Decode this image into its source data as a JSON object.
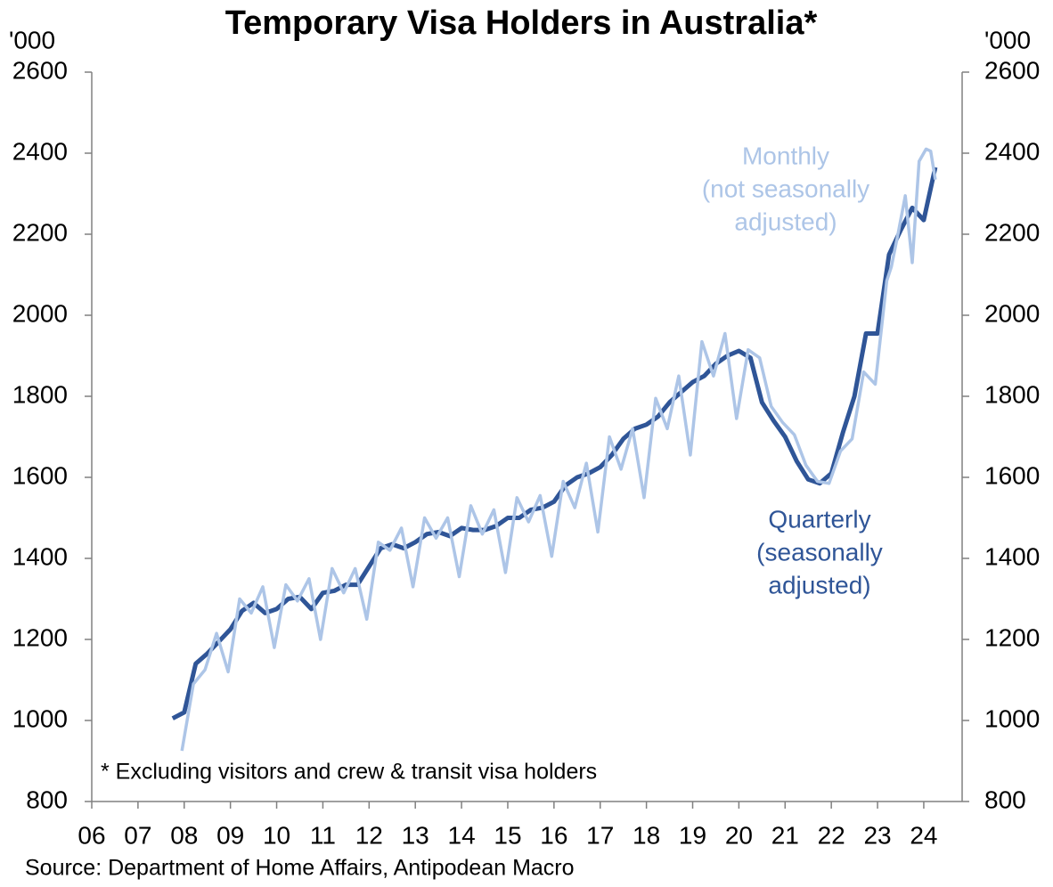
{
  "chart_data": {
    "type": "line",
    "title": "Temporary Visa Holders in Australia*",
    "y_unit": "'000",
    "y2_unit": "'000",
    "footnote": "* Excluding visitors and crew & transit visa holders",
    "source": "Source: Department of Home Affairs, Antipodean Macro",
    "xlim": [
      6,
      24.83
    ],
    "xticks": [
      {
        "value": 6,
        "label": "06"
      },
      {
        "value": 7,
        "label": "07"
      },
      {
        "value": 8,
        "label": "08"
      },
      {
        "value": 9,
        "label": "09"
      },
      10,
      11,
      12,
      13,
      14,
      15,
      16,
      17,
      18,
      19,
      20,
      21,
      22,
      23,
      24
    ],
    "ylim": [
      800,
      2600
    ],
    "yticks": [
      800,
      1000,
      1200,
      1400,
      1600,
      1800,
      2000,
      2200,
      2400,
      2600
    ],
    "y2lim": [
      800,
      2600
    ],
    "y2ticks": [
      800,
      1000,
      1200,
      1400,
      1600,
      1800,
      2000,
      2200,
      2400,
      2600
    ],
    "grid": false,
    "series": [
      {
        "label": [
          "Quarterly",
          "(seasonally",
          "adjusted)"
        ],
        "color": "#2f5597",
        "x": [
          7.75,
          8,
          8.25,
          8.5,
          8.75,
          9,
          9.25,
          9.5,
          9.75,
          10,
          10.25,
          10.5,
          10.75,
          11,
          11.25,
          11.5,
          11.75,
          12,
          12.25,
          12.5,
          12.75,
          13,
          13.25,
          13.5,
          13.75,
          14,
          14.25,
          14.5,
          14.75,
          15,
          15.25,
          15.5,
          15.75,
          16,
          16.25,
          16.5,
          16.75,
          17,
          17.25,
          17.5,
          17.75,
          18,
          18.25,
          18.5,
          18.75,
          19,
          19.25,
          19.5,
          19.75,
          20,
          20.25,
          20.5,
          20.75,
          21,
          21.25,
          21.5,
          21.75,
          22,
          22.25,
          22.5,
          22.75,
          23,
          23.25,
          23.5,
          23.75,
          24,
          24.25
        ],
        "values": [
          1005,
          1020,
          1140,
          1165,
          1195,
          1225,
          1270,
          1290,
          1265,
          1275,
          1300,
          1305,
          1275,
          1315,
          1320,
          1335,
          1335,
          1380,
          1425,
          1435,
          1425,
          1440,
          1460,
          1465,
          1455,
          1475,
          1470,
          1470,
          1480,
          1500,
          1500,
          1520,
          1525,
          1540,
          1580,
          1600,
          1610,
          1625,
          1655,
          1695,
          1720,
          1730,
          1750,
          1785,
          1810,
          1835,
          1850,
          1880,
          1900,
          1912,
          1895,
          1785,
          1740,
          1700,
          1640,
          1595,
          1585,
          1610,
          1710,
          1800,
          1955,
          1955,
          2150,
          2210,
          2265,
          2235,
          2365
        ]
      },
      {
        "label": [
          "Monthly",
          "(not seasonally",
          "adjusted)"
        ],
        "color": "#adc5e7",
        "x": [
          7.95,
          8.2,
          8.45,
          8.7,
          8.95,
          9.2,
          9.45,
          9.7,
          9.95,
          10.2,
          10.45,
          10.7,
          10.95,
          11.2,
          11.45,
          11.7,
          11.95,
          12.2,
          12.45,
          12.7,
          12.95,
          13.2,
          13.45,
          13.7,
          13.95,
          14.2,
          14.45,
          14.7,
          14.95,
          15.2,
          15.45,
          15.7,
          15.95,
          16.2,
          16.45,
          16.7,
          16.95,
          17.2,
          17.45,
          17.7,
          17.95,
          18.2,
          18.45,
          18.7,
          18.95,
          19.2,
          19.45,
          19.7,
          19.95,
          20.2,
          20.45,
          20.7,
          20.95,
          21.2,
          21.45,
          21.7,
          21.95,
          22.2,
          22.45,
          22.7,
          22.95,
          23.2,
          23.3,
          23.45,
          23.6,
          23.75,
          23.9,
          24.05,
          24.15,
          24.25
        ],
        "values": [
          925,
          1090,
          1125,
          1215,
          1120,
          1300,
          1265,
          1330,
          1180,
          1335,
          1295,
          1350,
          1200,
          1375,
          1315,
          1375,
          1250,
          1440,
          1420,
          1475,
          1330,
          1500,
          1450,
          1500,
          1355,
          1530,
          1460,
          1520,
          1365,
          1550,
          1490,
          1555,
          1405,
          1590,
          1525,
          1635,
          1465,
          1700,
          1620,
          1720,
          1550,
          1795,
          1720,
          1850,
          1655,
          1935,
          1850,
          1955,
          1745,
          1915,
          1895,
          1775,
          1735,
          1705,
          1630,
          1590,
          1585,
          1665,
          1695,
          1860,
          1830,
          2085,
          2120,
          2205,
          2295,
          2130,
          2380,
          2410,
          2405,
          2335
        ]
      }
    ]
  }
}
